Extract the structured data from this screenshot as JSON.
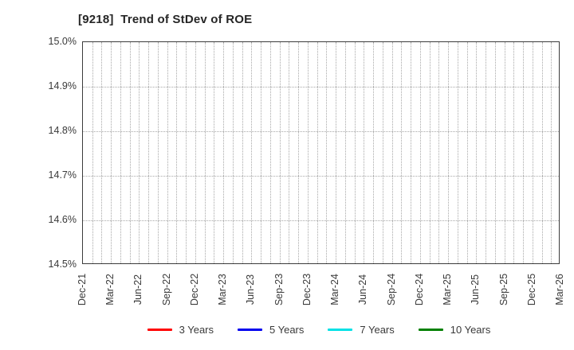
{
  "header": {
    "title": "[9218]  Trend of StDev of ROE"
  },
  "chart_data": {
    "type": "line",
    "title": "[9218]  Trend of StDev of ROE",
    "x_tick_labels": [
      "Dec-21",
      "Mar-22",
      "Jun-22",
      "Sep-22",
      "Dec-22",
      "Mar-23",
      "Jun-23",
      "Sep-23",
      "Dec-23",
      "Mar-24",
      "Jun-24",
      "Sep-24",
      "Dec-24",
      "Mar-25",
      "Jun-25",
      "Sep-25",
      "Dec-25",
      "Mar-26"
    ],
    "x_minor_gridlines_per_label_interval": 3,
    "y_tick_labels": [
      "15.0%",
      "14.9%",
      "14.8%",
      "14.7%",
      "14.6%",
      "14.5%"
    ],
    "ylim": [
      14.5,
      15.0
    ],
    "xlabel": "",
    "ylabel": "",
    "grid": "dotted",
    "legend_position": "bottom",
    "series": [
      {
        "name": "3 Years",
        "color": "#ff0000",
        "values": []
      },
      {
        "name": "5 Years",
        "color": "#0000ee",
        "values": []
      },
      {
        "name": "7 Years",
        "color": "#00e1e6",
        "values": []
      },
      {
        "name": "10 Years",
        "color": "#008000",
        "values": []
      }
    ]
  }
}
